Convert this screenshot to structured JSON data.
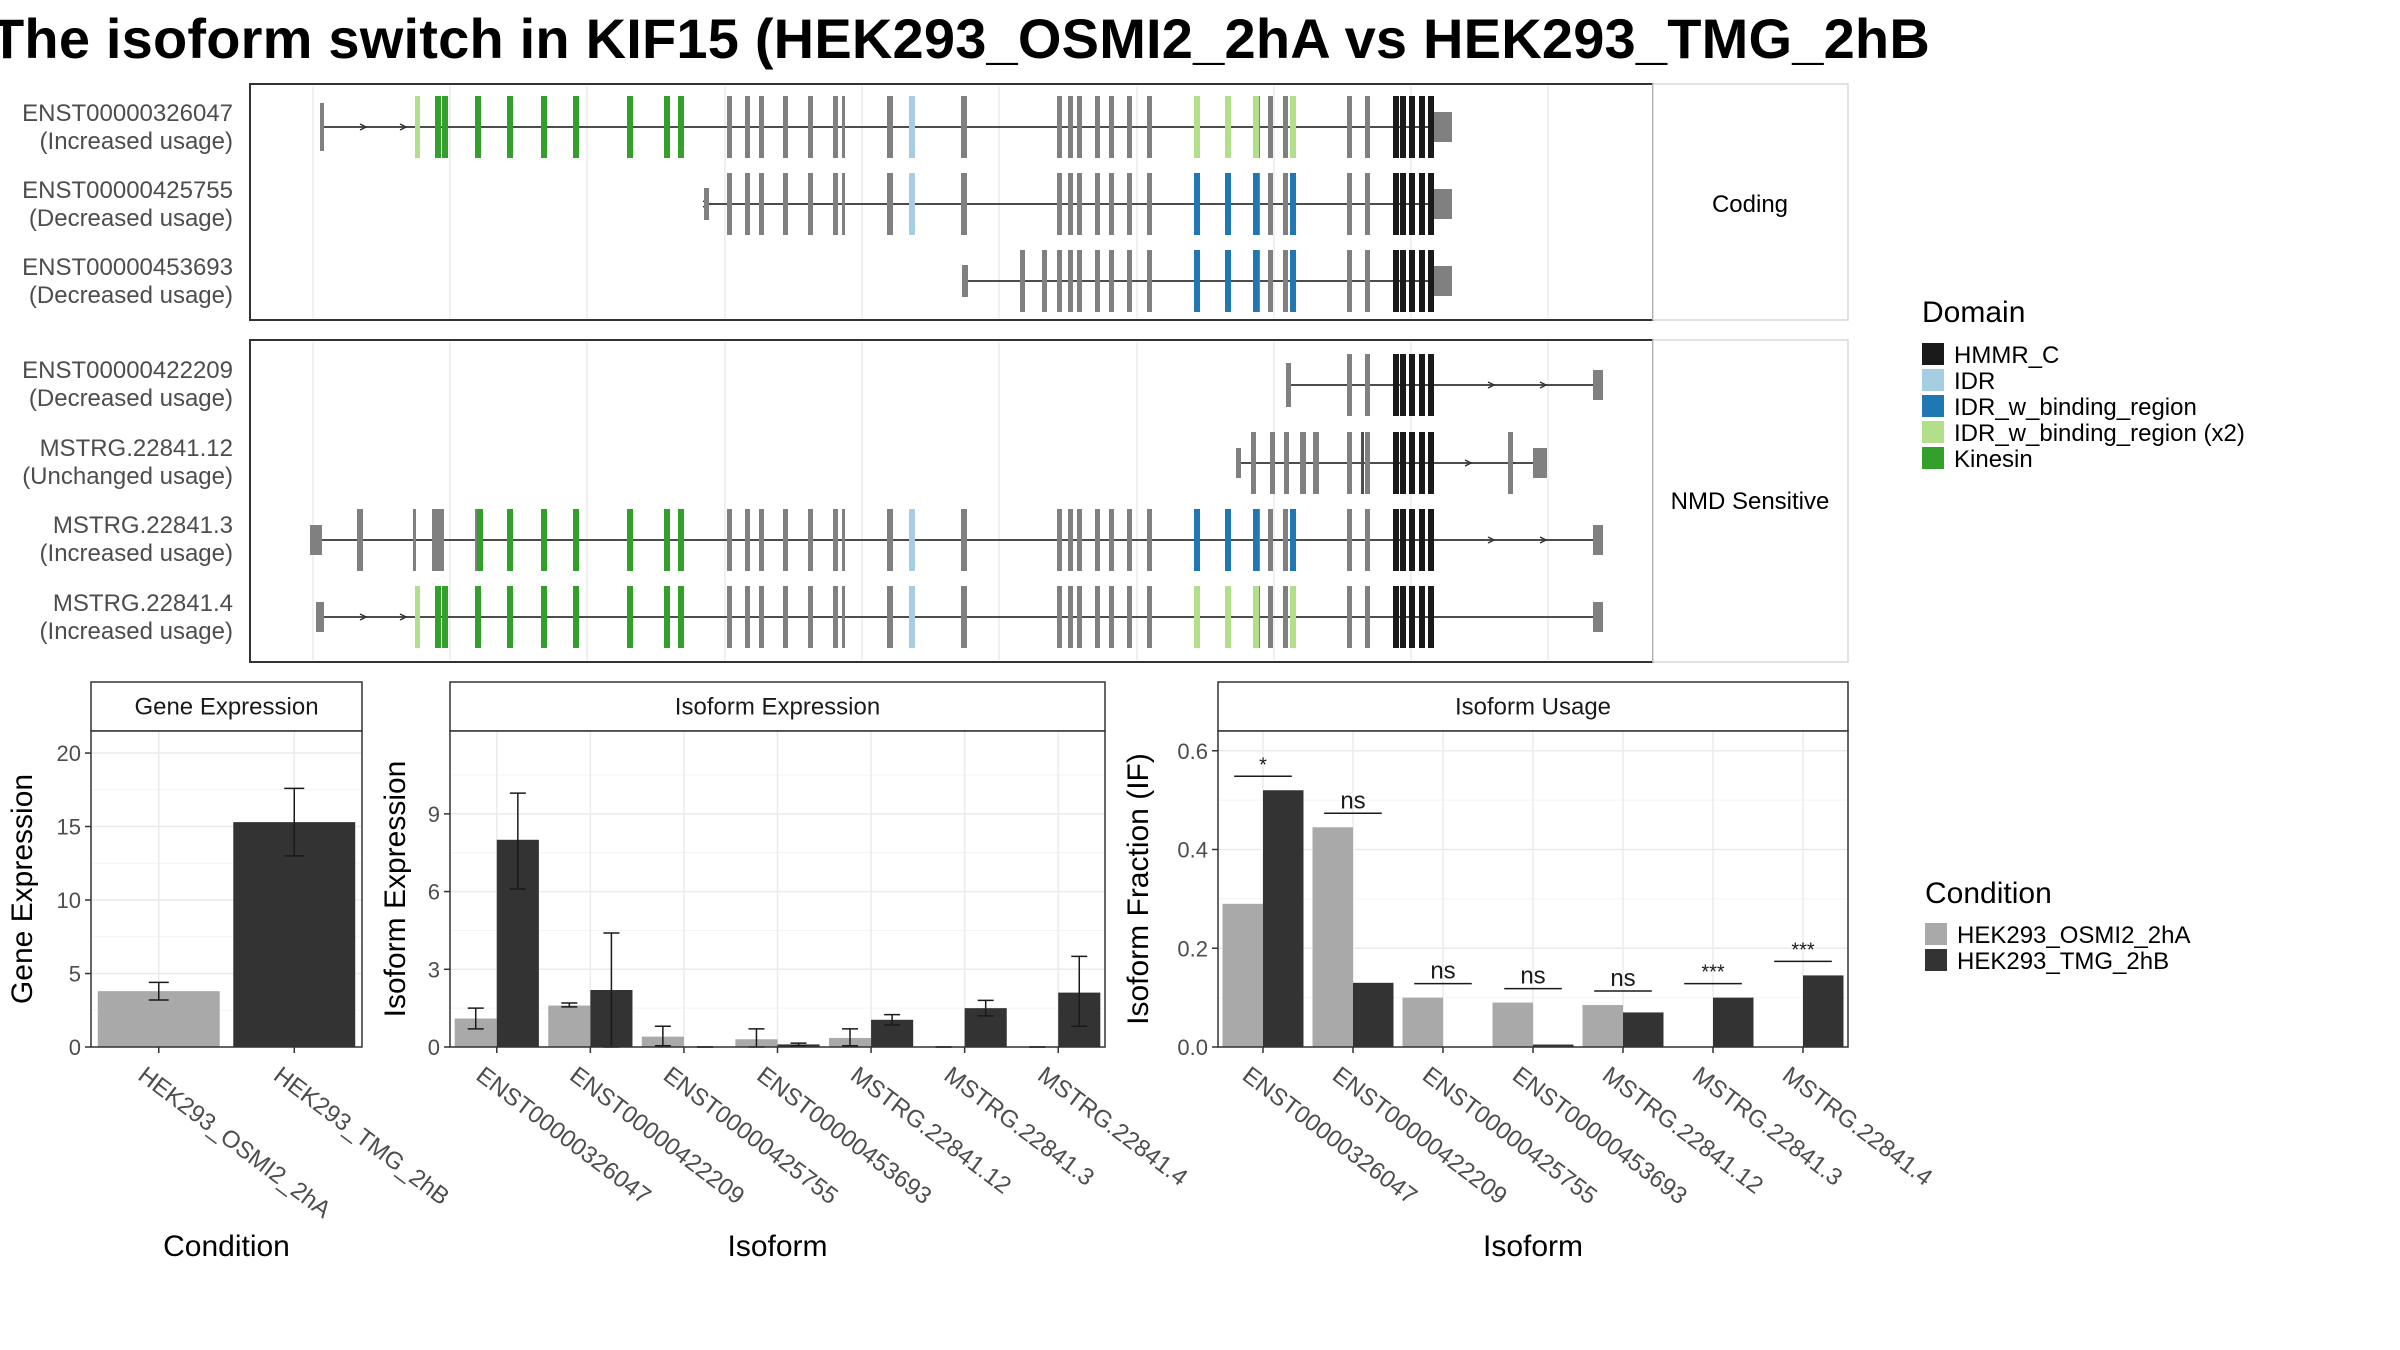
{
  "title": "The isoform switch in KIF15 (HEK293_OSMI2_2hA vs HEK293_TMG_2hB",
  "colors": {
    "domain": {
      "HMMR_C": "#1a1a1a",
      "IDR": "#a6cee3",
      "IDR_w_binding_region": "#1f78b4",
      "IDR_w_binding_region (x2)": "#b2df8a",
      "Kinesin": "#33a02c"
    },
    "exon": "#808080",
    "condition": {
      "HEK293_OSMI2_2hA": "#a9a9a9",
      "HEK293_TMG_2hB": "#333333"
    }
  },
  "structure": {
    "facets": [
      "Coding",
      "NMD Sensitive"
    ],
    "isoforms": [
      {
        "id": "ENST00000326047",
        "usage": "(Increased usage)",
        "facet": "Coding"
      },
      {
        "id": "ENST00000425755",
        "usage": "(Decreased usage)",
        "facet": "Coding"
      },
      {
        "id": "ENST00000453693",
        "usage": "(Decreased usage)",
        "facet": "Coding"
      },
      {
        "id": "ENST00000422209",
        "usage": "(Decreased usage)",
        "facet": "NMD Sensitive"
      },
      {
        "id": "MSTRG.22841.12",
        "usage": "(Unchanged usage)",
        "facet": "NMD Sensitive"
      },
      {
        "id": "MSTRG.22841.3",
        "usage": "(Increased usage)",
        "facet": "NMD Sensitive"
      },
      {
        "id": "MSTRG.22841.4",
        "usage": "(Increased usage)",
        "facet": "NMD Sensitive"
      }
    ]
  },
  "legends": {
    "domain_title": "Domain",
    "domain_items": [
      "HMMR_C",
      "IDR",
      "IDR_w_binding_region",
      "IDR_w_binding_region (x2)",
      "Kinesin"
    ],
    "condition_title": "Condition",
    "condition_items": [
      "HEK293_OSMI2_2hA",
      "HEK293_TMG_2hB"
    ]
  },
  "chart_data": [
    {
      "type": "bar",
      "title": "Gene Expression",
      "xlabel": "Condition",
      "ylabel": "Gene Expression",
      "categories": [
        "HEK293_OSMI2_2hA",
        "HEK293_TMG_2hB"
      ],
      "values": [
        3.8,
        15.3
      ],
      "error_low": [
        3.2,
        13.0
      ],
      "error_high": [
        4.4,
        17.6
      ],
      "ylim": [
        0,
        21.5
      ],
      "yticks": [
        0,
        5,
        10,
        15,
        20
      ]
    },
    {
      "type": "bar",
      "title": "Isoform Expression",
      "xlabel": "Isoform",
      "ylabel": "Isoform Expression",
      "categories": [
        "ENST00000326047",
        "ENST00000422209",
        "ENST00000425755",
        "ENST00000453693",
        "MSTRG.22841.12",
        "MSTRG.22841.3",
        "MSTRG.22841.4"
      ],
      "ylim": [
        0,
        12.2
      ],
      "yticks": [
        0,
        3,
        6,
        9
      ],
      "series": [
        {
          "name": "HEK293_OSMI2_2hA",
          "values": [
            1.1,
            1.6,
            0.4,
            0.3,
            0.35,
            0,
            0
          ],
          "error_low": [
            0.7,
            1.55,
            0.05,
            0,
            0.05,
            0,
            0
          ],
          "error_high": [
            1.5,
            1.7,
            0.8,
            0.7,
            0.7,
            0,
            0
          ]
        },
        {
          "name": "HEK293_TMG_2hB",
          "values": [
            8.0,
            2.2,
            0,
            0.1,
            1.05,
            1.5,
            2.1
          ],
          "error_low": [
            6.1,
            0,
            0,
            0.05,
            0.85,
            1.2,
            0.8
          ],
          "error_high": [
            9.8,
            4.4,
            0,
            0.15,
            1.25,
            1.8,
            3.5
          ]
        }
      ]
    },
    {
      "type": "bar",
      "title": "Isoform Usage",
      "xlabel": "Isoform",
      "ylabel": "Isoform Fraction (IF)",
      "categories": [
        "ENST00000326047",
        "ENST00000422209",
        "ENST00000425755",
        "ENST00000453693",
        "MSTRG.22841.12",
        "MSTRG.22841.3",
        "MSTRG.22841.4"
      ],
      "ylim": [
        0,
        0.64
      ],
      "yticks": [
        0.0,
        0.2,
        0.4,
        0.6
      ],
      "series": [
        {
          "name": "HEK293_OSMI2_2hA",
          "values": [
            0.29,
            0.445,
            0.1,
            0.09,
            0.085,
            0,
            0
          ]
        },
        {
          "name": "HEK293_TMG_2hB",
          "values": [
            0.52,
            0.13,
            0,
            0.005,
            0.07,
            0.1,
            0.145
          ]
        }
      ],
      "significance": [
        "*",
        "ns",
        "ns",
        "ns",
        "ns",
        "***",
        "***"
      ]
    }
  ]
}
